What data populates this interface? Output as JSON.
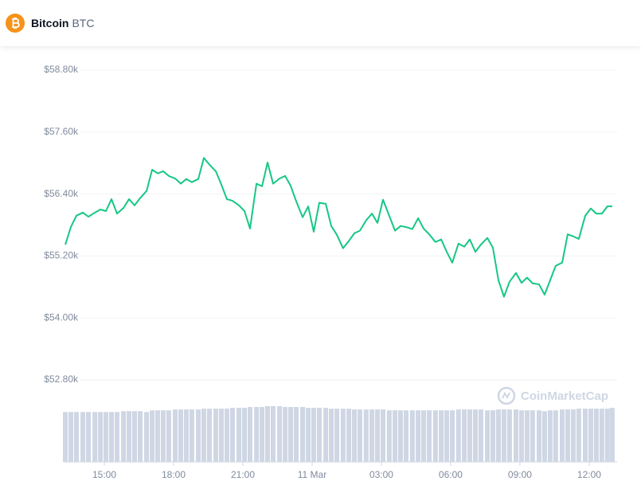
{
  "chart_data": {
    "type": "line",
    "title": "Bitcoin",
    "symbol": "BTC",
    "watermark": "CoinMarketCap",
    "color": "#16c784",
    "volume_color": "#cfd6e4",
    "grid": true,
    "x": [
      13.31,
      13.55,
      13.79,
      14.07,
      14.31,
      14.59,
      14.83,
      15.07,
      15.31,
      15.55,
      15.83,
      16.07,
      16.31,
      16.55,
      16.83,
      17.07,
      17.31,
      17.55,
      17.79,
      18.07,
      18.31,
      18.55,
      18.79,
      19.07,
      19.31,
      19.55,
      19.83,
      20.07,
      20.31,
      20.55,
      20.83,
      21.07,
      21.31,
      21.59,
      21.83,
      22.07,
      22.31,
      22.59,
      22.83,
      23.07,
      23.31,
      23.59,
      23.83,
      24.07,
      24.31,
      24.59,
      24.83,
      25.07,
      25.34,
      25.59,
      25.83,
      26.07,
      26.34,
      26.59,
      26.83,
      27.07,
      27.34,
      27.59,
      27.83,
      28.07,
      28.34,
      28.59,
      28.83,
      29.07,
      29.34,
      29.59,
      29.83,
      30.07,
      30.34,
      30.59,
      30.83,
      31.07,
      31.31,
      31.59,
      31.83,
      32.07,
      32.31,
      32.55,
      32.83,
      33.07,
      33.31,
      33.55,
      33.83,
      34.07,
      34.31,
      34.55,
      34.83,
      35.07,
      35.31,
      35.55,
      35.83,
      36.07,
      36.31,
      36.55,
      36.79,
      37.0
    ],
    "values": [
      55420,
      55760,
      55980,
      56040,
      55960,
      56040,
      56100,
      56070,
      56300,
      56020,
      56130,
      56300,
      56180,
      56320,
      56460,
      56870,
      56800,
      56840,
      56750,
      56700,
      56600,
      56690,
      56630,
      56690,
      57100,
      56970,
      56840,
      56580,
      56300,
      56270,
      56180,
      56070,
      55730,
      56600,
      56550,
      57010,
      56600,
      56700,
      56750,
      56560,
      56260,
      55950,
      56160,
      55670,
      56230,
      56210,
      55780,
      55610,
      55350,
      55490,
      55640,
      55690,
      55890,
      56020,
      55840,
      56290,
      55980,
      55690,
      55780,
      55760,
      55720,
      55930,
      55730,
      55620,
      55470,
      55520,
      55280,
      55070,
      55440,
      55380,
      55520,
      55280,
      55420,
      55550,
      55360,
      54730,
      54410,
      54700,
      54870,
      54680,
      54780,
      54670,
      54650,
      54450,
      54730,
      55010,
      55070,
      55620,
      55580,
      55530,
      55980,
      56120,
      56020,
      56020,
      56160,
      56160
    ],
    "volume": [
      60,
      60,
      60,
      60,
      60,
      60,
      60,
      60,
      60,
      60,
      61,
      61,
      61,
      61,
      60,
      62,
      62,
      62,
      62,
      63,
      63,
      63,
      63,
      63,
      64,
      64,
      64,
      64,
      64,
      65,
      65,
      65,
      66,
      66,
      66,
      67,
      67,
      67,
      66,
      66,
      66,
      66,
      65,
      65,
      65,
      65,
      64,
      64,
      64,
      64,
      63,
      63,
      63,
      63,
      63,
      63,
      62,
      62,
      62,
      62,
      62,
      62,
      62,
      62,
      62,
      62,
      62,
      62,
      63,
      63,
      63,
      63,
      63,
      62,
      62,
      63,
      63,
      63,
      63,
      62,
      62,
      62,
      62,
      61,
      62,
      62,
      63,
      63,
      63,
      64,
      64,
      64,
      64,
      64,
      64,
      65
    ],
    "xlim": [
      13.24,
      37.21
    ],
    "xticks": [
      {
        "value": 15,
        "label": "15:00"
      },
      {
        "value": 18,
        "label": "18:00"
      },
      {
        "value": 21,
        "label": "21:00"
      },
      {
        "value": 24,
        "label": "11 Mar"
      },
      {
        "value": 27,
        "label": "03:00"
      },
      {
        "value": 30,
        "label": "06:00"
      },
      {
        "value": 33,
        "label": "09:00"
      },
      {
        "value": 36,
        "label": "12:00"
      }
    ],
    "ylim": [
      52800,
      58800
    ],
    "yticks": [
      {
        "value": 58800,
        "label": "$58.80k"
      },
      {
        "value": 57600,
        "label": "$57.60k"
      },
      {
        "value": 56400,
        "label": "$56.40k"
      },
      {
        "value": 55200,
        "label": "$55.20k"
      },
      {
        "value": 54000,
        "label": "$54.00k"
      },
      {
        "value": 52800,
        "label": "$52.80k"
      }
    ]
  }
}
